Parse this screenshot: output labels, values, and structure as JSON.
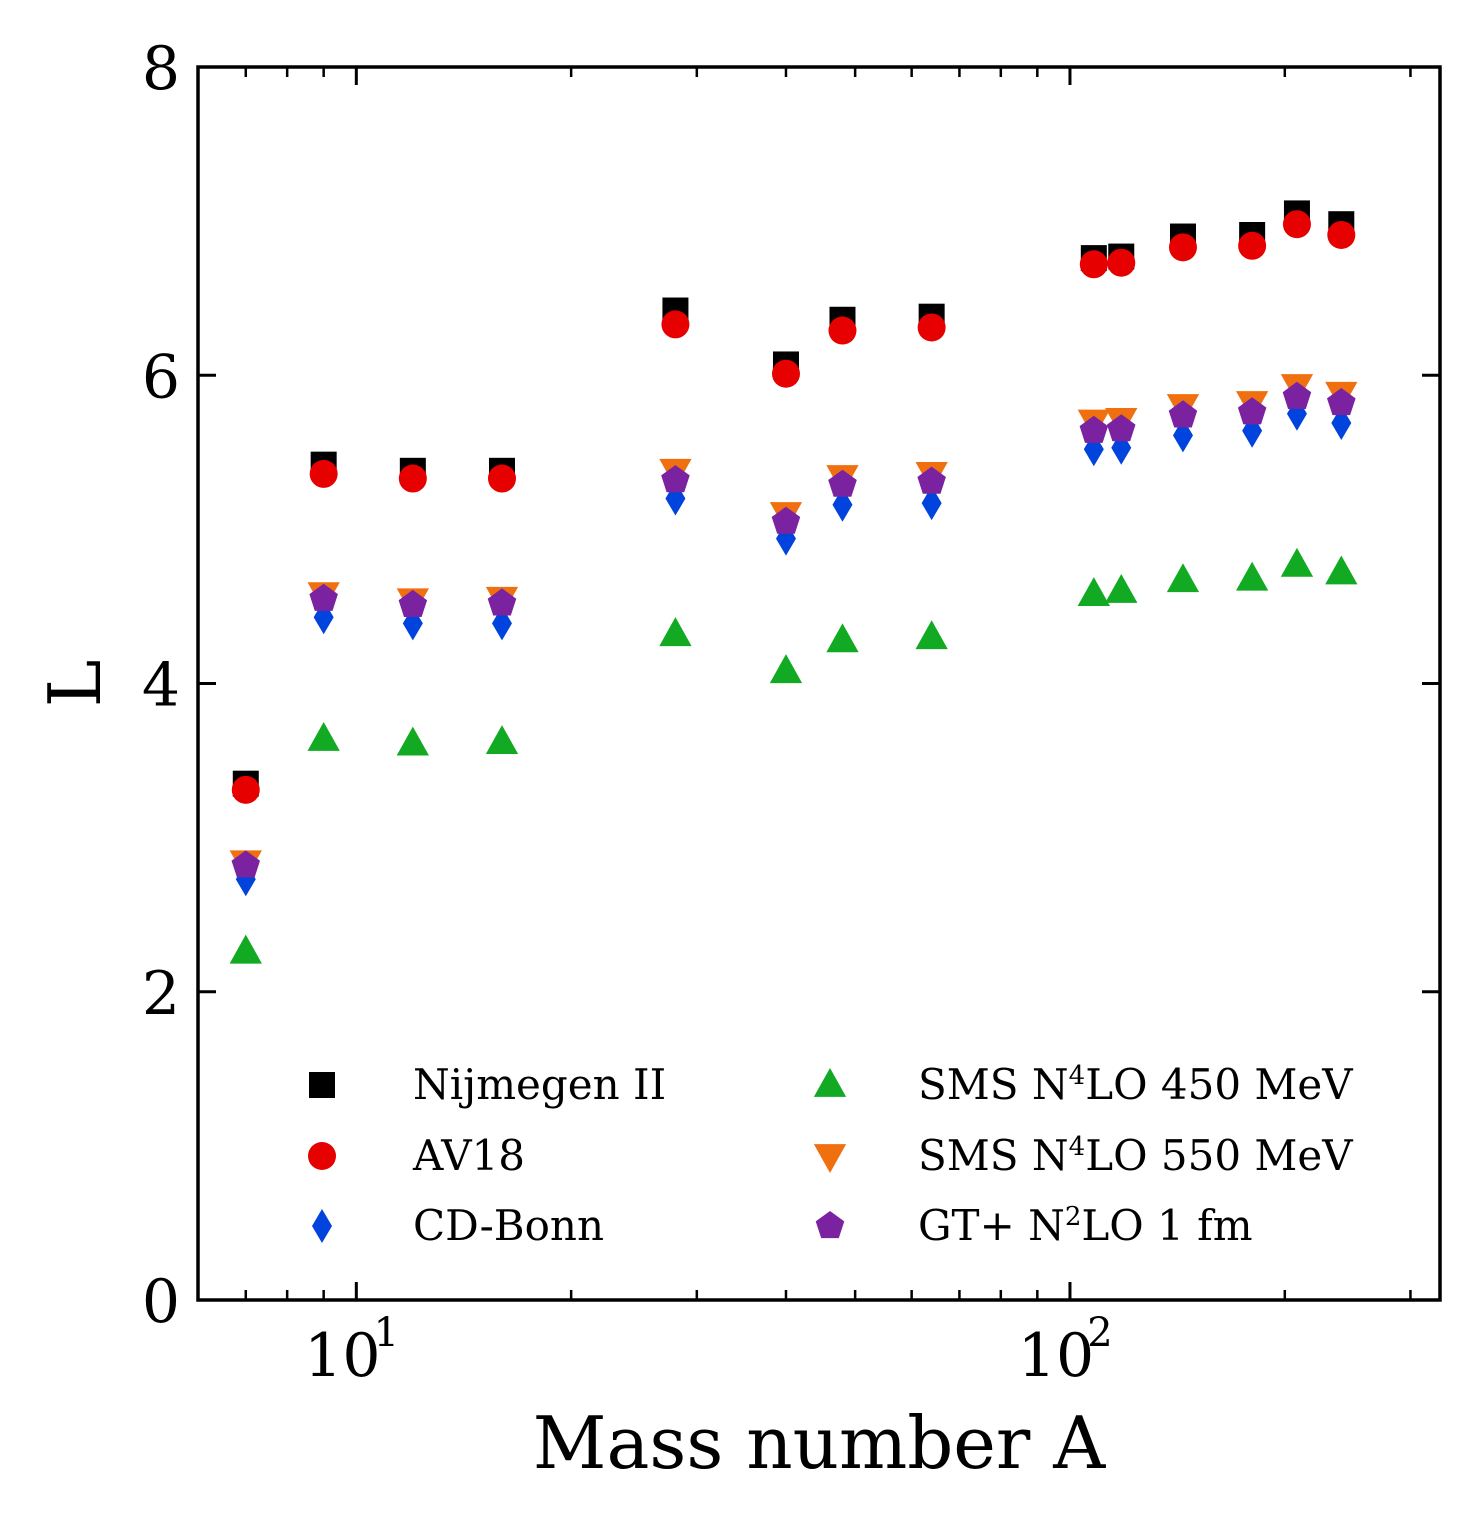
{
  "chart_data": {
    "type": "scatter",
    "xlabel": "Mass number A",
    "ylabel": "L",
    "xscale": "log",
    "xlim": [
      6,
      330
    ],
    "ylim": [
      0,
      8
    ],
    "yticks": [
      0,
      2,
      4,
      6,
      8
    ],
    "xticks": [
      {
        "value": 10,
        "base": "10",
        "exp": "1"
      },
      {
        "value": 100,
        "base": "10",
        "exp": "2"
      }
    ],
    "legend_position": "lower-center (two columns)",
    "x": [
      7,
      9,
      12,
      16,
      28,
      40,
      48,
      64,
      108,
      118,
      144,
      180,
      208,
      240
    ],
    "series": [
      {
        "name": "Nijmegen II",
        "marker": "square",
        "color": "#000000",
        "values": [
          3.35,
          5.42,
          5.38,
          5.38,
          6.42,
          6.07,
          6.36,
          6.38,
          6.76,
          6.77,
          6.9,
          6.91,
          7.05,
          6.98
        ]
      },
      {
        "name": "AV18",
        "marker": "circle",
        "color": "#e60000",
        "values": [
          3.31,
          5.36,
          5.33,
          5.33,
          6.33,
          6.01,
          6.29,
          6.31,
          6.72,
          6.73,
          6.83,
          6.84,
          6.98,
          6.91
        ]
      },
      {
        "name": "CD-Bonn",
        "marker": "diamond",
        "color": "#0044dd",
        "values": [
          2.73,
          4.43,
          4.39,
          4.39,
          5.2,
          4.94,
          5.16,
          5.17,
          5.52,
          5.53,
          5.61,
          5.64,
          5.75,
          5.69
        ]
      },
      {
        "name": "SMS N4LO 450 MeV",
        "label_base": "SMS N",
        "label_sup": "4",
        "label_tail": "LO 450 MeV",
        "marker": "triangle-up",
        "color": "#11aa22",
        "values": [
          2.26,
          3.64,
          3.61,
          3.62,
          4.32,
          4.08,
          4.28,
          4.3,
          4.58,
          4.6,
          4.67,
          4.68,
          4.77,
          4.72
        ]
      },
      {
        "name": "SMS N4LO 550 MeV",
        "label_base": "SMS N",
        "label_sup": "4",
        "label_tail": "LO 550 MeV",
        "marker": "triangle-down",
        "color": "#f07010",
        "values": [
          2.84,
          4.58,
          4.54,
          4.55,
          5.38,
          5.1,
          5.34,
          5.36,
          5.7,
          5.71,
          5.8,
          5.82,
          5.93,
          5.88
        ]
      },
      {
        "name": "GT+ N2LO 1 fm",
        "label_base": "GT+ N",
        "label_sup": "2",
        "label_tail": "LO 1 fm",
        "marker": "pentagon",
        "color": "#7a22a0",
        "values": [
          2.82,
          4.55,
          4.51,
          4.52,
          5.32,
          5.05,
          5.29,
          5.31,
          5.64,
          5.65,
          5.74,
          5.76,
          5.86,
          5.82
        ]
      }
    ]
  }
}
